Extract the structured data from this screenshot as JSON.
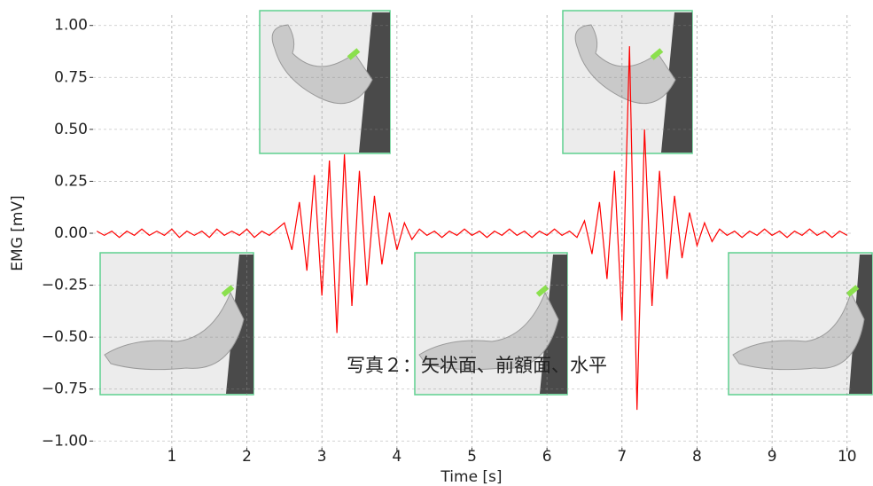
{
  "chart_data": {
    "type": "line",
    "annotation": "写真２：矢状面、前額面、水平",
    "x_label": "Time [s]",
    "y_label": "EMG [mV]",
    "x": [
      0,
      0.1,
      0.2,
      0.3,
      0.4,
      0.5,
      0.6,
      0.7,
      0.8,
      0.9,
      1,
      1.1,
      1.2,
      1.3,
      1.4,
      1.5,
      1.6,
      1.7,
      1.8,
      1.9,
      2,
      2.1,
      2.2,
      2.3,
      2.4,
      2.5,
      2.6,
      2.7,
      2.8,
      2.9,
      3,
      3.1,
      3.2,
      3.3,
      3.4,
      3.5,
      3.6,
      3.7,
      3.8,
      3.9,
      4,
      4.1,
      4.2,
      4.3,
      4.4,
      4.5,
      4.6,
      4.7,
      4.8,
      4.9,
      5,
      5.1,
      5.2,
      5.3,
      5.4,
      5.5,
      5.6,
      5.7,
      5.8,
      5.9,
      6,
      6.1,
      6.2,
      6.3,
      6.4,
      6.5,
      6.6,
      6.7,
      6.8,
      6.9,
      7,
      7.1,
      7.2,
      7.3,
      7.4,
      7.5,
      7.6,
      7.7,
      7.8,
      7.9,
      8,
      8.1,
      8.2,
      8.3,
      8.4,
      8.5,
      8.6,
      8.7,
      8.8,
      8.9,
      9,
      9.1,
      9.2,
      9.3,
      9.4,
      9.5,
      9.6,
      9.7,
      9.8,
      9.9,
      10
    ],
    "series": [
      {
        "color": "#ff0000",
        "values": [
          0.01,
          -0.01,
          0.01,
          -0.02,
          0.01,
          -0.01,
          0.02,
          -0.01,
          0.01,
          -0.01,
          0.02,
          -0.02,
          0.01,
          -0.01,
          0.01,
          -0.02,
          0.02,
          -0.01,
          0.01,
          -0.01,
          0.02,
          -0.02,
          0.01,
          -0.01,
          0.02,
          0.05,
          -0.08,
          0.15,
          -0.18,
          0.28,
          -0.3,
          0.35,
          -0.48,
          0.38,
          -0.35,
          0.3,
          -0.25,
          0.18,
          -0.15,
          0.1,
          -0.08,
          0.05,
          -0.03,
          0.02,
          -0.01,
          0.01,
          -0.02,
          0.01,
          -0.01,
          0.02,
          -0.01,
          0.01,
          -0.02,
          0.01,
          -0.01,
          0.02,
          -0.01,
          0.01,
          -0.02,
          0.01,
          -0.01,
          0.02,
          -0.01,
          0.01,
          -0.02,
          0.06,
          -0.1,
          0.15,
          -0.22,
          0.3,
          -0.42,
          0.9,
          -0.85,
          0.5,
          -0.35,
          0.3,
          -0.22,
          0.18,
          -0.12,
          0.1,
          -0.06,
          0.05,
          -0.04,
          0.02,
          -0.01,
          0.01,
          -0.02,
          0.01,
          -0.01,
          0.02,
          -0.01,
          0.01,
          -0.02,
          0.01,
          -0.01,
          0.02,
          -0.01,
          0.01,
          -0.02,
          0.01,
          -0.01
        ]
      }
    ],
    "xlim": [
      -0.05,
      10.05
    ],
    "ylim": [
      -1.05,
      1.05
    ],
    "xticks": [
      1,
      2,
      3,
      4,
      5,
      6,
      7,
      8,
      9,
      10
    ],
    "yticks": [
      {
        "value": 1,
        "label": "1.00"
      },
      {
        "value": 0.75,
        "label": "0.75"
      },
      {
        "value": 0.5,
        "label": "0.50"
      },
      {
        "value": 0.25,
        "label": "0.25"
      },
      {
        "value": 0,
        "label": "0.00"
      },
      {
        "value": -0.25,
        "label": "−0.25"
      },
      {
        "value": -0.5,
        "label": "−0.50"
      },
      {
        "value": -0.75,
        "label": "−0.75"
      },
      {
        "value": -1,
        "label": "−1.00"
      }
    ],
    "grid": true
  }
}
